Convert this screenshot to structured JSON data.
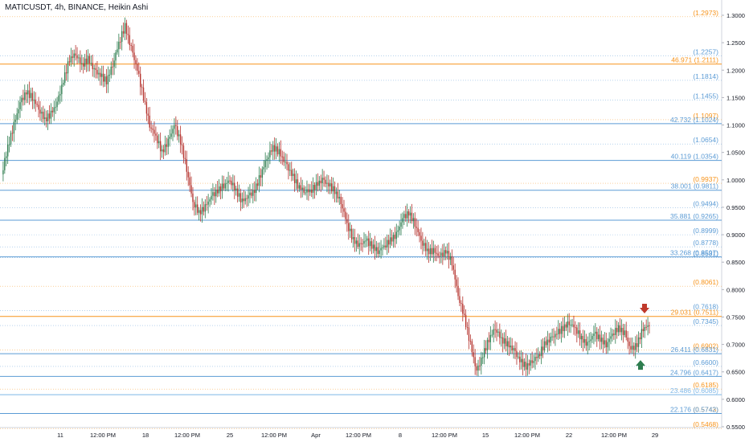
{
  "header": {
    "symbol_label": "MATICUSDT, 4h, BINANCE, Heikin Ashi"
  },
  "colors": {
    "orange": "#f7931a",
    "blue": "#5b9bd5",
    "light_blue": "#7db7e8",
    "bull": "#26a69a",
    "bull_dark": "#2e7d4f",
    "bear": "#b5322d",
    "arrow_up": "#2e7d4f",
    "arrow_down": "#c0392b"
  },
  "chart_data": {
    "type": "candlestick",
    "title": "MATICUSDT, 4h, BINANCE, Heikin Ashi",
    "ylim": [
      0.55,
      1.32
    ],
    "y_ticks": [
      "1.3000",
      "1.2500",
      "1.2000",
      "1.1500",
      "1.1000",
      "1.0500",
      "1.0000",
      "0.9500",
      "0.9000",
      "0.8500",
      "0.8000",
      "0.7500",
      "0.7000",
      "0.6500",
      "0.6000",
      "0.5500"
    ],
    "x_ticks": [
      "11",
      "12:00 PM",
      "18",
      "12:00 PM",
      "25",
      "12:00 PM",
      "Apr",
      "12:00 PM",
      "8",
      "12:00 PM",
      "15",
      "12:00 PM",
      "22",
      "12:00 PM",
      "29"
    ],
    "solid_levels": [
      {
        "price": 1.2111,
        "label": "46.971 (1.2111)",
        "color": "orange"
      },
      {
        "price": 1.1024,
        "label": "42.732 (1.1024)",
        "color": "blue"
      },
      {
        "price": 1.0354,
        "label": "40.119 (1.0354)",
        "color": "blue"
      },
      {
        "price": 0.9811,
        "label": "38.001 (0.9811)",
        "color": "blue"
      },
      {
        "price": 0.9265,
        "label": "35.881 (0.9265)",
        "color": "blue"
      },
      {
        "price": 0.8597,
        "label": "33.268 (0.8597)",
        "color": "blue"
      },
      {
        "price": 0.7511,
        "label": "29.031 (0.7511)",
        "color": "orange"
      },
      {
        "price": 0.6831,
        "label": "26.411 (0.6831)",
        "color": "blue"
      },
      {
        "price": 0.6417,
        "label": "24.796 (0.6417)",
        "color": "blue"
      },
      {
        "price": 0.6085,
        "label": "23.486 (0.6085)",
        "color": "light_blue"
      },
      {
        "price": 0.5742,
        "label": "22.176 (0.5742)",
        "color": "blue"
      }
    ],
    "dotted_levels": [
      {
        "price": 1.2973,
        "label": "(1.2973)",
        "color": "orange"
      },
      {
        "price": 1.2257,
        "label": "(1.2257)",
        "color": "blue"
      },
      {
        "price": 1.1814,
        "label": "(1.1814)",
        "color": "blue"
      },
      {
        "price": 1.1455,
        "label": "(1.1455)",
        "color": "blue"
      },
      {
        "price": 1.1097,
        "label": "(1.1097)",
        "color": "orange"
      },
      {
        "price": 1.0654,
        "label": "(1.0654)",
        "color": "blue"
      },
      {
        "price": 0.9937,
        "label": "(0.9937)",
        "color": "orange"
      },
      {
        "price": 0.9494,
        "label": "(0.9494)",
        "color": "blue"
      },
      {
        "price": 0.8999,
        "label": "(0.8999)",
        "color": "blue"
      },
      {
        "price": 0.8778,
        "label": "(0.8778)",
        "color": "blue"
      },
      {
        "price": 0.8581,
        "label": "(0.8581)",
        "color": "blue"
      },
      {
        "price": 0.8061,
        "label": "(0.8061)",
        "color": "orange"
      },
      {
        "price": 0.7618,
        "label": "(0.7618)",
        "color": "blue"
      },
      {
        "price": 0.7345,
        "label": "(0.7345)",
        "color": "blue"
      },
      {
        "price": 0.6902,
        "label": "(0.6902)",
        "color": "orange"
      },
      {
        "price": 0.66,
        "label": "(0.6600)",
        "color": "blue"
      },
      {
        "price": 0.6185,
        "label": "(0.6185)",
        "color": "orange"
      },
      {
        "price": 0.5743,
        "label": "(0.5743)",
        "color": "orange"
      },
      {
        "price": 0.5468,
        "label": "(0.5468)",
        "color": "orange"
      }
    ],
    "price_path": [
      1.01,
      1.06,
      1.1,
      1.14,
      1.16,
      1.15,
      1.13,
      1.11,
      1.12,
      1.14,
      1.18,
      1.22,
      1.23,
      1.21,
      1.22,
      1.2,
      1.19,
      1.18,
      1.21,
      1.25,
      1.28,
      1.24,
      1.2,
      1.15,
      1.1,
      1.08,
      1.05,
      1.07,
      1.1,
      1.07,
      1.02,
      0.96,
      0.94,
      0.95,
      0.97,
      0.98,
      0.99,
      1.0,
      0.98,
      0.96,
      0.97,
      0.98,
      1.01,
      1.04,
      1.06,
      1.05,
      1.03,
      1.01,
      0.99,
      0.98,
      0.98,
      0.99,
      1.0,
      0.99,
      0.98,
      0.96,
      0.92,
      0.89,
      0.88,
      0.89,
      0.88,
      0.87,
      0.88,
      0.89,
      0.9,
      0.93,
      0.94,
      0.92,
      0.89,
      0.87,
      0.87,
      0.86,
      0.87,
      0.85,
      0.79,
      0.75,
      0.7,
      0.65,
      0.68,
      0.71,
      0.73,
      0.71,
      0.7,
      0.69,
      0.67,
      0.66,
      0.67,
      0.68,
      0.7,
      0.71,
      0.72,
      0.73,
      0.74,
      0.73,
      0.71,
      0.7,
      0.72,
      0.71,
      0.7,
      0.72,
      0.73,
      0.72,
      0.69,
      0.7,
      0.73,
      0.735
    ]
  },
  "markers": {
    "down_arrow_price": 0.758,
    "up_arrow_price": 0.67
  }
}
